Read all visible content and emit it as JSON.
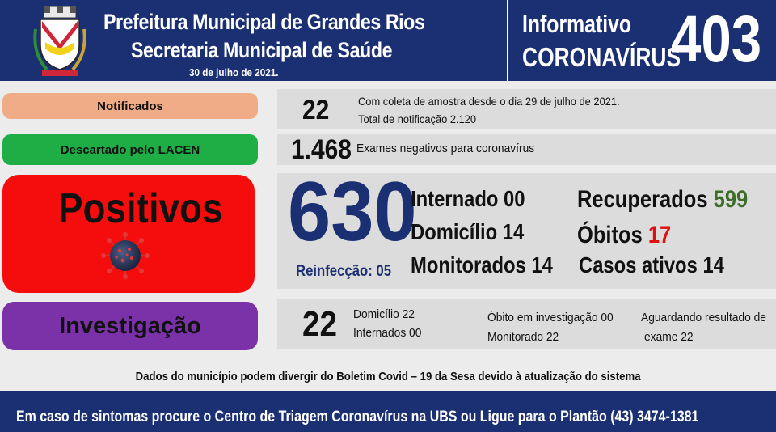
{
  "header": {
    "line1": "Prefeitura Municipal de Grandes Rios",
    "line2": "Secretaria Municipal de Saúde",
    "date": "30 de julho de 2021.",
    "info_label": "Informativo",
    "topic": "CORONAVÍRUS",
    "issue_number": "403"
  },
  "labels": {
    "notificados": "Notificados",
    "descartado": "Descartado pelo LACEN",
    "positivos": "Positivos",
    "investigacao": "Investigação"
  },
  "notificados": {
    "count": "22",
    "line1": "Com coleta de amostra desde o dia 29 de julho de 2021.",
    "line2": "Total de notificação 2.120"
  },
  "descartado": {
    "count": "1.468",
    "text": "Exames negativos para coronavírus"
  },
  "positivos": {
    "total": "630",
    "reinfeccao": "Reinfecção: 05",
    "internado": "Internado 00",
    "domicilio": "Domicílio 14",
    "monitorados": "Monitorados 14",
    "recuperados_label": "Recuperados",
    "recuperados_value": "599",
    "obitos_label": "Óbitos",
    "obitos_value": "17",
    "casos_ativos": "Casos ativos 14"
  },
  "investigacao": {
    "count": "22",
    "domicilio": "Domicílio 22",
    "internados": "Internados 00",
    "obito": "Óbito em investigação 00",
    "monitorado": "Monitorado 22",
    "aguardando1": "Aguardando resultado de",
    "aguardando2": "exame 22"
  },
  "note": "Dados do município podem divergir do Boletim Covid – 19 da Sesa devido à atualização do sistema",
  "footer": "Em caso de sintomas procure o Centro de Triagem Coronavírus na UBS ou Ligue para o Plantão (43) 3474-1381",
  "colors": {
    "header_bg": "#1b2f73",
    "notificados": "#f0ab87",
    "descartado": "#1fae45",
    "positivos": "#f50d0d",
    "investigacao": "#7b31a8",
    "recuperados": "#3e6d2a",
    "obitos": "#e01010"
  },
  "icons": [
    "municipal-crest-icon",
    "coronavirus-icon"
  ]
}
